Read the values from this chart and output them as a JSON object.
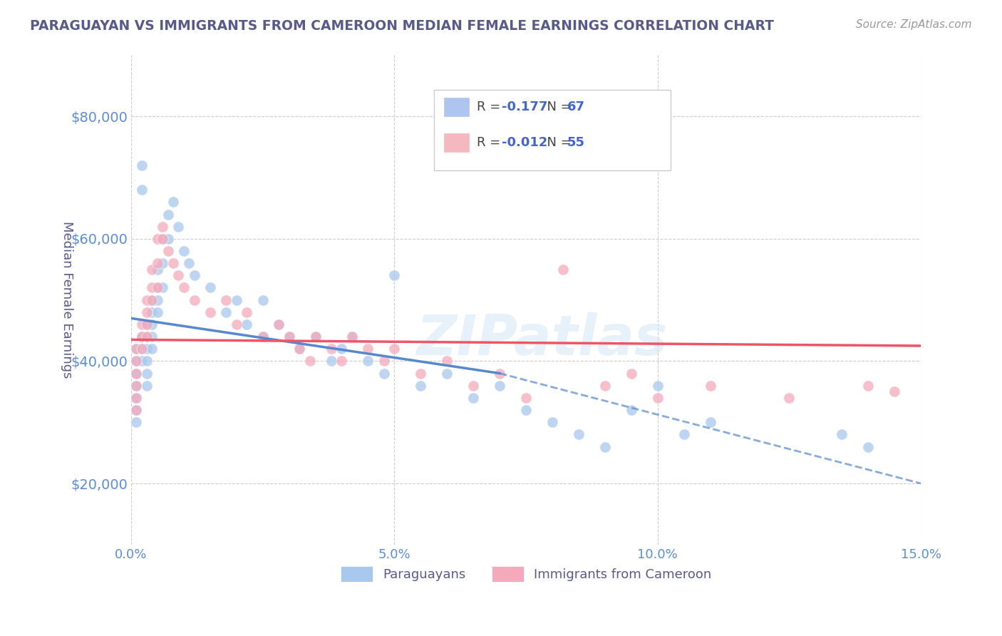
{
  "title": "PARAGUAYAN VS IMMIGRANTS FROM CAMEROON MEDIAN FEMALE EARNINGS CORRELATION CHART",
  "source": "Source: ZipAtlas.com",
  "ylabel": "Median Female Earnings",
  "xlim": [
    0.0,
    0.15
  ],
  "ylim": [
    10000,
    90000
  ],
  "yticks": [
    20000,
    40000,
    60000,
    80000
  ],
  "ytick_labels": [
    "$20,000",
    "$40,000",
    "$60,000",
    "$80,000"
  ],
  "xticks": [
    0.0,
    0.05,
    0.1,
    0.15
  ],
  "xtick_labels": [
    "0.0%",
    "5.0%",
    "10.0%",
    "15.0%"
  ],
  "legend_entries": [
    {
      "color": "#aec6ef",
      "r": "-0.177",
      "n": "67"
    },
    {
      "color": "#f4b8c1",
      "r": "-0.012",
      "n": "55"
    }
  ],
  "blue_scatter": [
    [
      0.001,
      42000
    ],
    [
      0.001,
      40000
    ],
    [
      0.001,
      38000
    ],
    [
      0.001,
      36000
    ],
    [
      0.001,
      34000
    ],
    [
      0.001,
      32000
    ],
    [
      0.001,
      30000
    ],
    [
      0.002,
      44000
    ],
    [
      0.002,
      42000
    ],
    [
      0.002,
      40000
    ],
    [
      0.002,
      72000
    ],
    [
      0.002,
      68000
    ],
    [
      0.003,
      46000
    ],
    [
      0.003,
      44000
    ],
    [
      0.003,
      42000
    ],
    [
      0.003,
      40000
    ],
    [
      0.003,
      38000
    ],
    [
      0.003,
      36000
    ],
    [
      0.004,
      50000
    ],
    [
      0.004,
      48000
    ],
    [
      0.004,
      46000
    ],
    [
      0.004,
      44000
    ],
    [
      0.004,
      42000
    ],
    [
      0.005,
      55000
    ],
    [
      0.005,
      52000
    ],
    [
      0.005,
      50000
    ],
    [
      0.005,
      48000
    ],
    [
      0.006,
      60000
    ],
    [
      0.006,
      56000
    ],
    [
      0.006,
      52000
    ],
    [
      0.007,
      64000
    ],
    [
      0.007,
      60000
    ],
    [
      0.008,
      66000
    ],
    [
      0.009,
      62000
    ],
    [
      0.01,
      58000
    ],
    [
      0.011,
      56000
    ],
    [
      0.012,
      54000
    ],
    [
      0.015,
      52000
    ],
    [
      0.018,
      48000
    ],
    [
      0.02,
      50000
    ],
    [
      0.022,
      46000
    ],
    [
      0.025,
      50000
    ],
    [
      0.025,
      44000
    ],
    [
      0.028,
      46000
    ],
    [
      0.03,
      44000
    ],
    [
      0.032,
      42000
    ],
    [
      0.035,
      44000
    ],
    [
      0.038,
      40000
    ],
    [
      0.04,
      42000
    ],
    [
      0.042,
      44000
    ],
    [
      0.045,
      40000
    ],
    [
      0.048,
      38000
    ],
    [
      0.05,
      54000
    ],
    [
      0.055,
      36000
    ],
    [
      0.06,
      38000
    ],
    [
      0.065,
      34000
    ],
    [
      0.07,
      36000
    ],
    [
      0.075,
      32000
    ],
    [
      0.08,
      30000
    ],
    [
      0.085,
      28000
    ],
    [
      0.09,
      26000
    ],
    [
      0.095,
      32000
    ],
    [
      0.1,
      36000
    ],
    [
      0.105,
      28000
    ],
    [
      0.11,
      30000
    ],
    [
      0.135,
      28000
    ],
    [
      0.14,
      26000
    ]
  ],
  "pink_scatter": [
    [
      0.001,
      42000
    ],
    [
      0.001,
      40000
    ],
    [
      0.001,
      38000
    ],
    [
      0.001,
      36000
    ],
    [
      0.001,
      34000
    ],
    [
      0.001,
      32000
    ],
    [
      0.002,
      46000
    ],
    [
      0.002,
      44000
    ],
    [
      0.002,
      42000
    ],
    [
      0.003,
      50000
    ],
    [
      0.003,
      48000
    ],
    [
      0.003,
      46000
    ],
    [
      0.003,
      44000
    ],
    [
      0.004,
      55000
    ],
    [
      0.004,
      52000
    ],
    [
      0.004,
      50000
    ],
    [
      0.005,
      60000
    ],
    [
      0.005,
      56000
    ],
    [
      0.005,
      52000
    ],
    [
      0.006,
      62000
    ],
    [
      0.006,
      60000
    ],
    [
      0.007,
      58000
    ],
    [
      0.008,
      56000
    ],
    [
      0.009,
      54000
    ],
    [
      0.01,
      52000
    ],
    [
      0.012,
      50000
    ],
    [
      0.015,
      48000
    ],
    [
      0.018,
      50000
    ],
    [
      0.02,
      46000
    ],
    [
      0.022,
      48000
    ],
    [
      0.025,
      44000
    ],
    [
      0.028,
      46000
    ],
    [
      0.03,
      44000
    ],
    [
      0.032,
      42000
    ],
    [
      0.034,
      40000
    ],
    [
      0.035,
      44000
    ],
    [
      0.038,
      42000
    ],
    [
      0.04,
      40000
    ],
    [
      0.042,
      44000
    ],
    [
      0.045,
      42000
    ],
    [
      0.048,
      40000
    ],
    [
      0.05,
      42000
    ],
    [
      0.055,
      38000
    ],
    [
      0.06,
      40000
    ],
    [
      0.065,
      36000
    ],
    [
      0.07,
      38000
    ],
    [
      0.075,
      34000
    ],
    [
      0.082,
      55000
    ],
    [
      0.09,
      36000
    ],
    [
      0.095,
      38000
    ],
    [
      0.1,
      34000
    ],
    [
      0.11,
      36000
    ],
    [
      0.125,
      34000
    ],
    [
      0.14,
      36000
    ],
    [
      0.145,
      35000
    ]
  ],
  "blue_line_solid": {
    "x0": 0.0,
    "y0": 47000,
    "x1": 0.07,
    "y1": 38000
  },
  "blue_line_dashed": {
    "x0": 0.07,
    "y0": 38000,
    "x1": 0.15,
    "y1": 20000
  },
  "pink_line": {
    "x0": 0.0,
    "y0": 43500,
    "x1": 0.15,
    "y1": 42500
  },
  "watermark": "ZIPatlas",
  "bg_color": "#ffffff",
  "plot_bg_color": "#ffffff",
  "grid_color": "#cccccc",
  "title_color": "#5a5a8a",
  "axis_label_color": "#5a5a8a",
  "tick_color": "#5b8dd9",
  "scatter_blue": "#a8c8ee",
  "scatter_pink": "#f4aabb",
  "line_blue": "#5588cc",
  "line_pink": "#ee5566",
  "source_color": "#999999",
  "legend_r_color": "#4466cc",
  "legend_n_color": "#4466cc"
}
